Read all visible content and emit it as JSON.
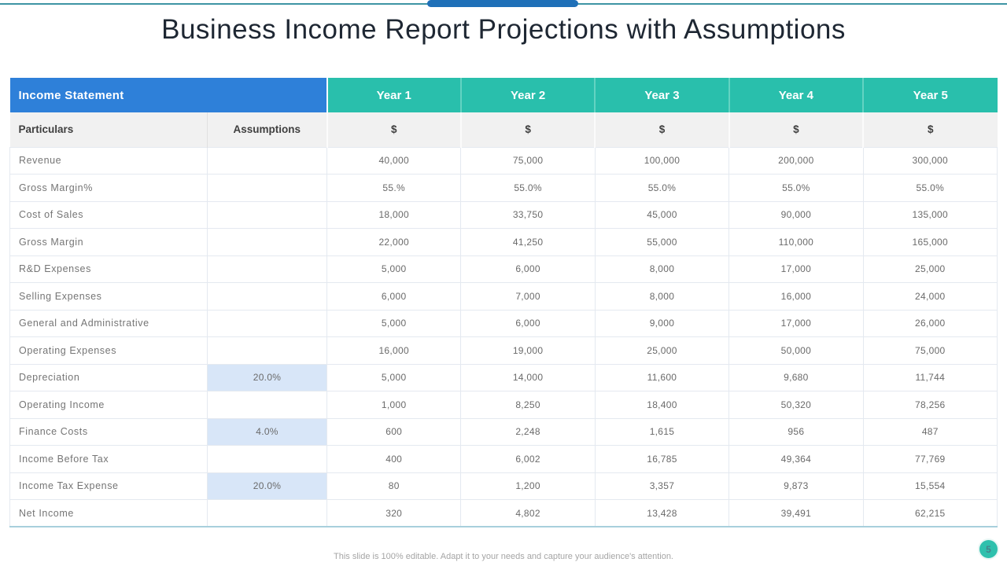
{
  "slide": {
    "title": "Business Income Report Projections with Assumptions",
    "footer": "This slide is 100% editable. Adapt it to your needs and capture your audience's attention.",
    "page_number": "5"
  },
  "table": {
    "header": {
      "income_statement": "Income Statement",
      "years": [
        "Year 1",
        "Year 2",
        "Year 3",
        "Year 4",
        "Year 5"
      ]
    },
    "subheader": {
      "particulars": "Particulars",
      "assumptions": "Assumptions",
      "currency": "$"
    },
    "rows": [
      {
        "label": "Revenue",
        "assumption": "",
        "highlighted": false,
        "values": [
          "40,000",
          "75,000",
          "100,000",
          "200,000",
          "300,000"
        ]
      },
      {
        "label": "Gross Margin%",
        "assumption": "",
        "highlighted": false,
        "values": [
          "55.%",
          "55.0%",
          "55.0%",
          "55.0%",
          "55.0%"
        ]
      },
      {
        "label": "Cost of Sales",
        "assumption": "",
        "highlighted": false,
        "values": [
          "18,000",
          "33,750",
          "45,000",
          "90,000",
          "135,000"
        ]
      },
      {
        "label": "Gross Margin",
        "assumption": "",
        "highlighted": false,
        "values": [
          "22,000",
          "41,250",
          "55,000",
          "110,000",
          "165,000"
        ]
      },
      {
        "label": "R&D Expenses",
        "assumption": "",
        "highlighted": false,
        "values": [
          "5,000",
          "6,000",
          "8,000",
          "17,000",
          "25,000"
        ]
      },
      {
        "label": "Selling Expenses",
        "assumption": "",
        "highlighted": false,
        "values": [
          "6,000",
          "7,000",
          "8,000",
          "16,000",
          "24,000"
        ]
      },
      {
        "label": "General and Administrative",
        "assumption": "",
        "highlighted": false,
        "values": [
          "5,000",
          "6,000",
          "9,000",
          "17,000",
          "26,000"
        ]
      },
      {
        "label": "Operating Expenses",
        "assumption": "",
        "highlighted": false,
        "values": [
          "16,000",
          "19,000",
          "25,000",
          "50,000",
          "75,000"
        ]
      },
      {
        "label": "Depreciation",
        "assumption": "20.0%",
        "highlighted": true,
        "values": [
          "5,000",
          "14,000",
          "11,600",
          "9,680",
          "11,744"
        ]
      },
      {
        "label": "Operating Income",
        "assumption": "",
        "highlighted": false,
        "values": [
          "1,000",
          "8,250",
          "18,400",
          "50,320",
          "78,256"
        ]
      },
      {
        "label": "Finance Costs",
        "assumption": "4.0%",
        "highlighted": true,
        "values": [
          "600",
          "2,248",
          "1,615",
          "956",
          "487"
        ]
      },
      {
        "label": "Income Before Tax",
        "assumption": "",
        "highlighted": false,
        "values": [
          "400",
          "6,002",
          "16,785",
          "49,364",
          "77,769"
        ]
      },
      {
        "label": "Income Tax Expense",
        "assumption": "20.0%",
        "highlighted": true,
        "values": [
          "80",
          "1,200",
          "3,357",
          "9,873",
          "15,554"
        ]
      },
      {
        "label": "Net Income",
        "assumption": "",
        "highlighted": false,
        "values": [
          "320",
          "4,802",
          "13,428",
          "39,491",
          "62,215"
        ]
      }
    ]
  },
  "colors": {
    "blue_header": "#2E80D9",
    "teal_header": "#29BFAC",
    "teal_separator": "#63D3C2",
    "subheader_bg": "#F1F1F1",
    "highlight_cell_bg": "#D8E6F8",
    "top_line": "#3E95A4",
    "top_bar": "#1F70B8",
    "page_circle": "#2EC0AD"
  }
}
